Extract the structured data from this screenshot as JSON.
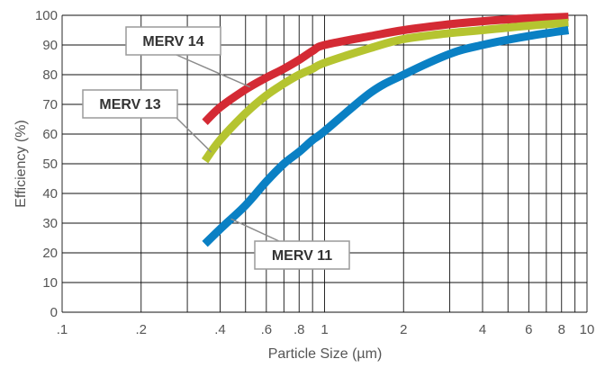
{
  "chart_data": {
    "type": "line",
    "xlabel": "Particle Size (µm)",
    "ylabel": "Efficiency (%)",
    "x_scale": "log",
    "xlim": [
      0.1,
      10
    ],
    "ylim": [
      0,
      100
    ],
    "grid": true,
    "x_tick_labels": [
      ".1",
      ".2",
      ".4",
      ".6",
      ".8",
      "1",
      "2",
      "4",
      "6",
      "8",
      "10"
    ],
    "x_ticks": [
      0.1,
      0.2,
      0.4,
      0.6,
      0.8,
      1,
      2,
      4,
      6,
      8,
      10
    ],
    "y_ticks": [
      0,
      10,
      20,
      30,
      40,
      50,
      60,
      70,
      80,
      90,
      100
    ],
    "colors": {
      "MERV 14": "#d42a34",
      "MERV 13": "#b5c430",
      "MERV 11": "#0a80c4"
    },
    "series": [
      {
        "name": "MERV 14",
        "x": [
          0.35,
          0.4,
          0.5,
          0.6,
          0.7,
          0.8,
          0.9,
          1.0,
          1.5,
          2,
          3,
          4,
          6,
          8.5
        ],
        "y": [
          64,
          69,
          75,
          79,
          82,
          85,
          88,
          90,
          93,
          95,
          97,
          98,
          99,
          99.5
        ]
      },
      {
        "name": "MERV 13",
        "x": [
          0.35,
          0.4,
          0.5,
          0.6,
          0.7,
          0.8,
          0.9,
          1.0,
          1.5,
          2,
          3,
          4,
          6,
          8.5
        ],
        "y": [
          51,
          58,
          67,
          73,
          77,
          80,
          82,
          84,
          89,
          92,
          94,
          95,
          96.5,
          97.5
        ]
      },
      {
        "name": "MERV 11",
        "x": [
          0.35,
          0.4,
          0.5,
          0.6,
          0.7,
          0.8,
          0.9,
          1.0,
          1.5,
          2,
          3,
          4,
          6,
          8.5
        ],
        "y": [
          23,
          28,
          36,
          44,
          50,
          54,
          58,
          61,
          74,
          80,
          87,
          90,
          93,
          95
        ]
      }
    ]
  }
}
